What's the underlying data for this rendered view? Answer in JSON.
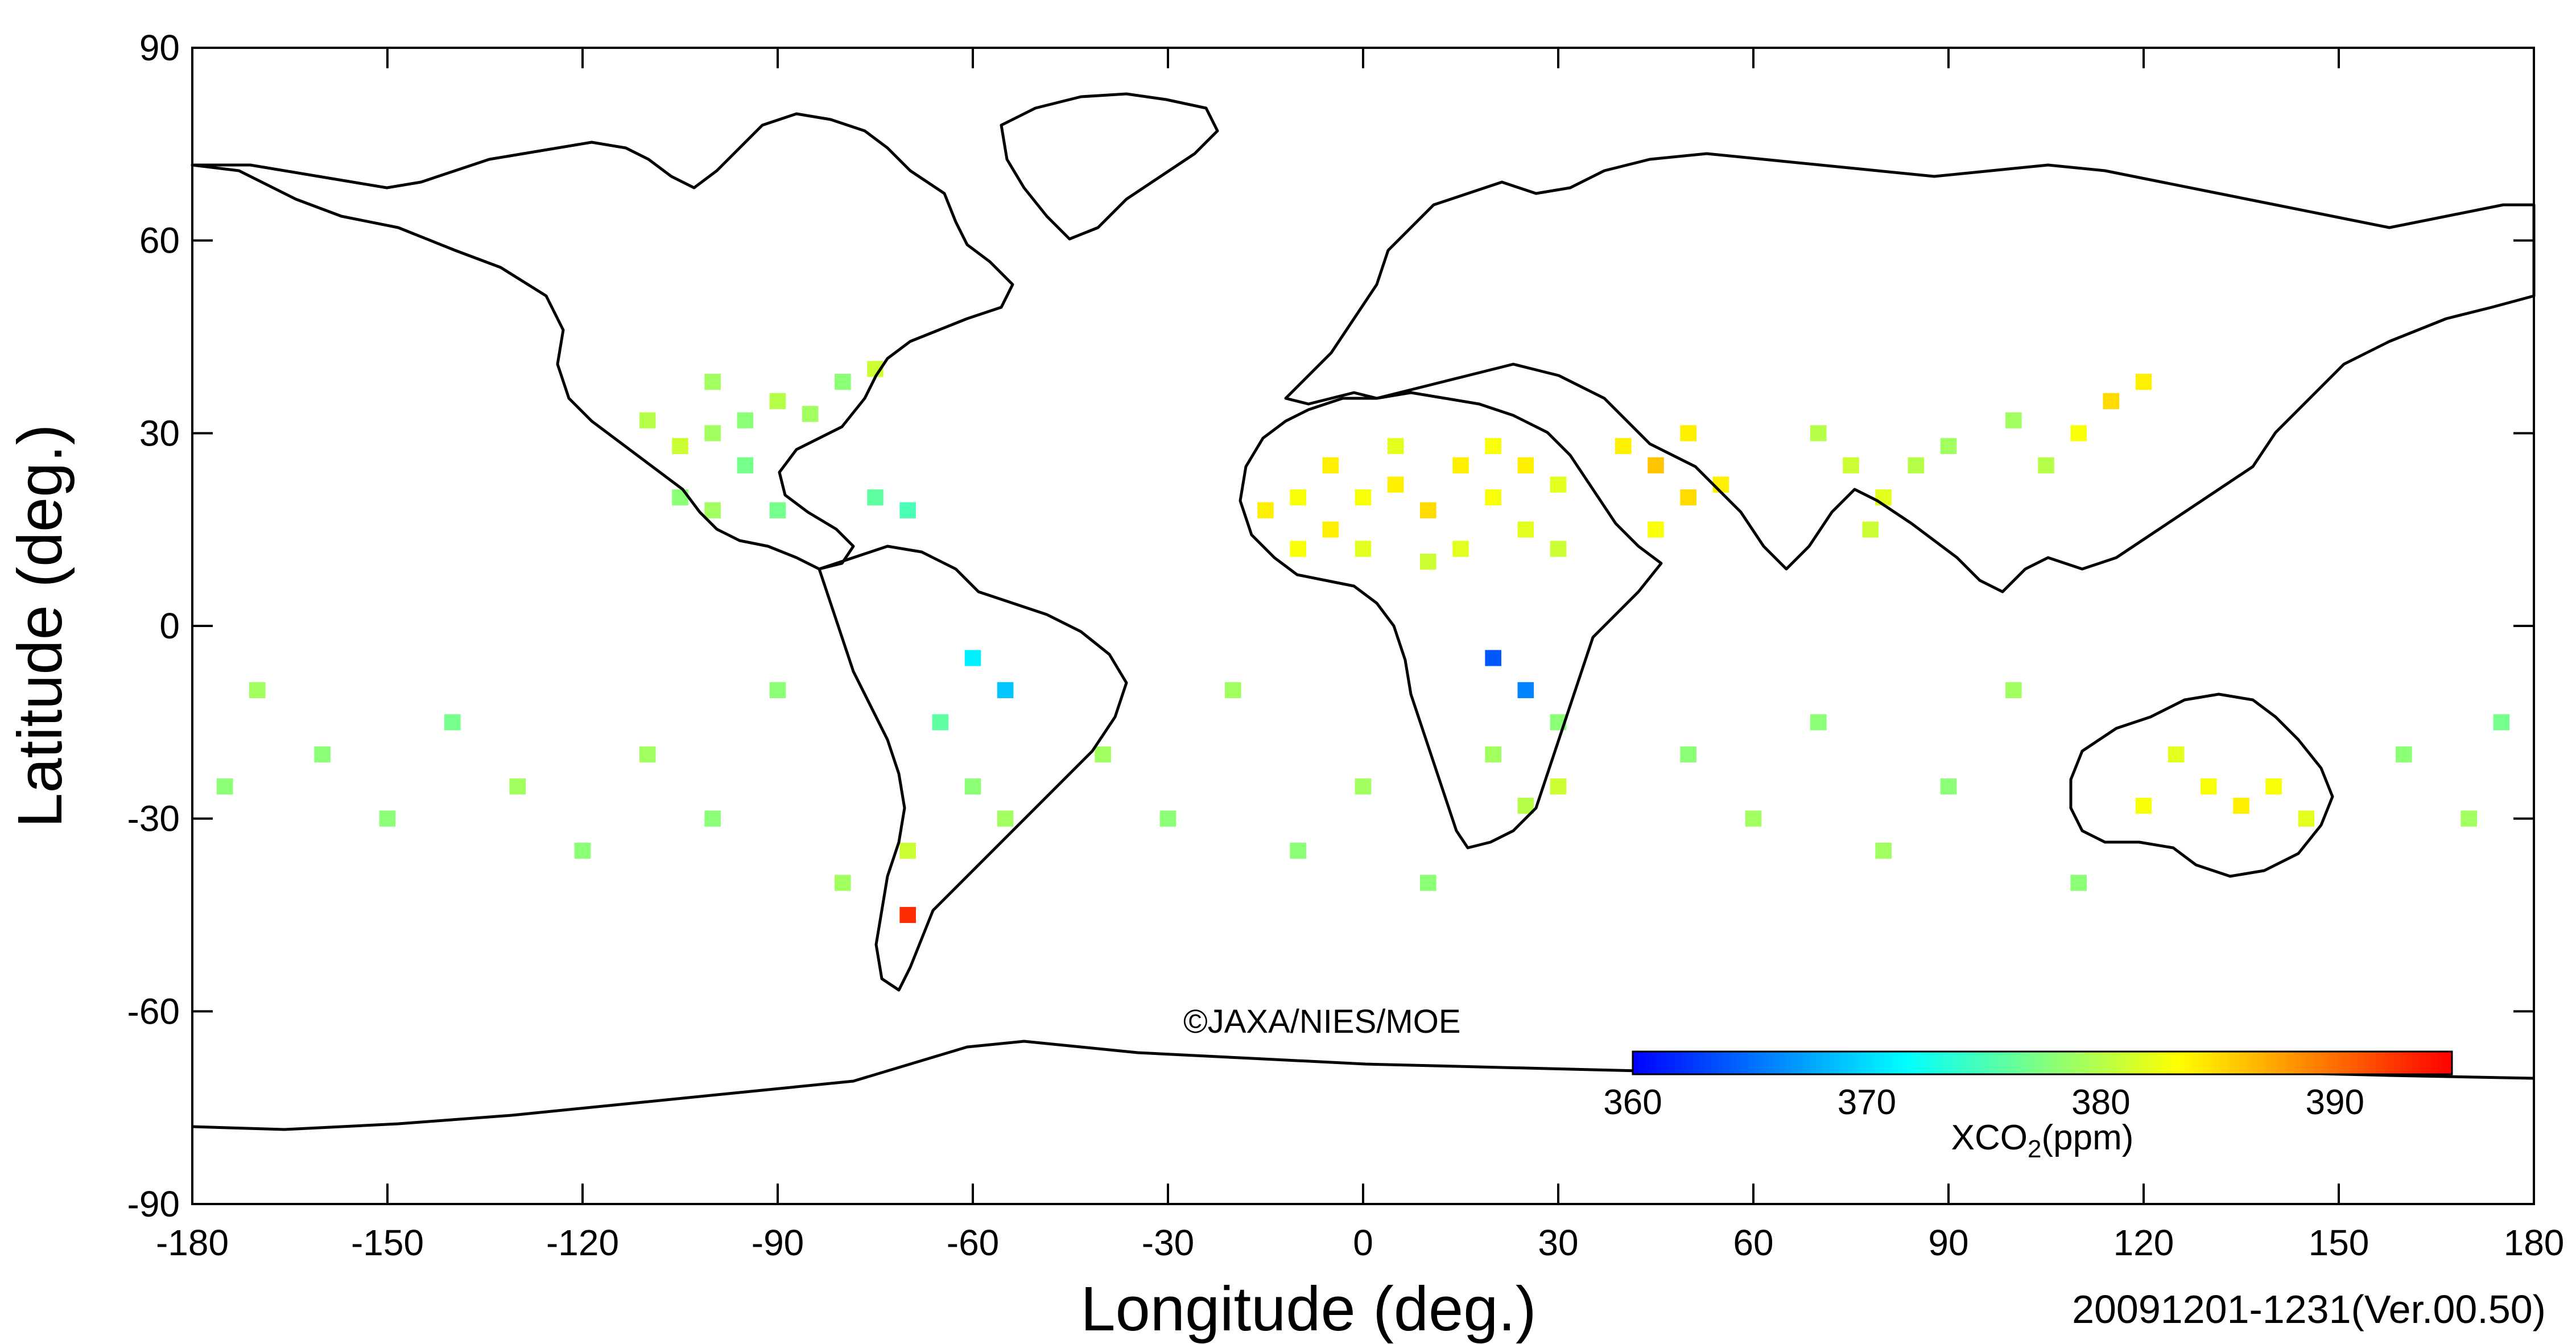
{
  "map": {
    "copyright": "©JAXA/NIES/MOE",
    "period_label": "20091201-1231(Ver.00.50)",
    "x_axis": {
      "label": "Longitude (deg.)",
      "range": [
        -180,
        180
      ],
      "ticks": [
        -180,
        -150,
        -120,
        -90,
        -60,
        -30,
        0,
        30,
        60,
        90,
        120,
        150,
        180
      ],
      "tick_labels": [
        "-180",
        "-150",
        "-120",
        "-90",
        "-60",
        "-30",
        "0",
        "30",
        "60",
        "90",
        "120",
        "150",
        "180"
      ]
    },
    "y_axis": {
      "label": "Latitude (deg.)",
      "range": [
        -90,
        90
      ],
      "ticks": [
        -90,
        -60,
        -30,
        0,
        30,
        60,
        90
      ],
      "tick_labels": [
        "-90",
        "-60",
        "-30",
        "0",
        "30",
        "60",
        "90"
      ]
    },
    "colorbar": {
      "label_prefix": "XCO",
      "label_subscript": "2",
      "label_suffix": "(ppm)",
      "range": [
        360,
        395
      ],
      "ticks": [
        360,
        370,
        380,
        390
      ],
      "tick_labels": [
        "360",
        "370",
        "380",
        "390"
      ],
      "colors": [
        "#0000ff",
        "#0080ff",
        "#00ffff",
        "#80ff80",
        "#ffff00",
        "#ff8000",
        "#ff0000"
      ]
    }
  },
  "chart_data": {
    "type": "heatmap",
    "description_units": "cells: [longitude, latitude, XCO2 ppm]",
    "cell_size_deg": 2.5,
    "cells": [
      [
        -100,
        30,
        379
      ],
      [
        -95,
        32,
        378
      ],
      [
        -90,
        35,
        380
      ],
      [
        -85,
        33,
        379
      ],
      [
        -105,
        28,
        381
      ],
      [
        -110,
        32,
        380
      ],
      [
        -80,
        38,
        378
      ],
      [
        -75,
        40,
        381
      ],
      [
        -100,
        38,
        379
      ],
      [
        -95,
        25,
        377
      ],
      [
        -105,
        20,
        378
      ],
      [
        -100,
        18,
        379
      ],
      [
        -90,
        18,
        377
      ],
      [
        -75,
        20,
        376
      ],
      [
        -70,
        18,
        375
      ],
      [
        0,
        20,
        383
      ],
      [
        5,
        22,
        384
      ],
      [
        10,
        18,
        385
      ],
      [
        15,
        25,
        384
      ],
      [
        20,
        20,
        383
      ],
      [
        25,
        15,
        382
      ],
      [
        -5,
        15,
        384
      ],
      [
        -10,
        20,
        383
      ],
      [
        -15,
        18,
        384
      ],
      [
        30,
        22,
        382
      ],
      [
        10,
        10,
        381
      ],
      [
        5,
        28,
        382
      ],
      [
        -5,
        25,
        384
      ],
      [
        20,
        28,
        383
      ],
      [
        15,
        12,
        382
      ],
      [
        30,
        12,
        381
      ],
      [
        0,
        12,
        382
      ],
      [
        -10,
        12,
        383
      ],
      [
        25,
        25,
        384
      ],
      [
        45,
        25,
        386
      ],
      [
        50,
        20,
        385
      ],
      [
        40,
        28,
        384
      ],
      [
        55,
        22,
        384
      ],
      [
        45,
        15,
        383
      ],
      [
        50,
        30,
        384
      ],
      [
        75,
        25,
        381
      ],
      [
        80,
        20,
        382
      ],
      [
        85,
        25,
        380
      ],
      [
        78,
        15,
        381
      ],
      [
        90,
        28,
        379
      ],
      [
        70,
        30,
        380
      ],
      [
        110,
        30,
        383
      ],
      [
        115,
        35,
        385
      ],
      [
        105,
        25,
        380
      ],
      [
        120,
        38,
        384
      ],
      [
        100,
        32,
        379
      ],
      [
        130,
        -25,
        383
      ],
      [
        135,
        -28,
        384
      ],
      [
        140,
        -25,
        383
      ],
      [
        125,
        -20,
        382
      ],
      [
        145,
        -30,
        382
      ],
      [
        120,
        -28,
        383
      ],
      [
        -60,
        -5,
        371
      ],
      [
        -55,
        -10,
        369
      ],
      [
        -65,
        -15,
        376
      ],
      [
        -60,
        -25,
        378
      ],
      [
        -55,
        -30,
        379
      ],
      [
        -70,
        -35,
        381
      ],
      [
        -70,
        -45,
        393
      ],
      [
        20,
        -5,
        364
      ],
      [
        25,
        -10,
        366
      ],
      [
        30,
        -15,
        378
      ],
      [
        20,
        -20,
        379
      ],
      [
        25,
        -28,
        380
      ],
      [
        30,
        -25,
        381
      ],
      [
        -170,
        -10,
        379
      ],
      [
        -160,
        -20,
        378
      ],
      [
        -150,
        -30,
        378
      ],
      [
        -140,
        -15,
        377
      ],
      [
        -130,
        -25,
        379
      ],
      [
        -120,
        -35,
        378
      ],
      [
        -110,
        -20,
        379
      ],
      [
        -100,
        -30,
        378
      ],
      [
        -90,
        -10,
        378
      ],
      [
        -80,
        -40,
        379
      ],
      [
        -40,
        -20,
        379
      ],
      [
        -30,
        -30,
        378
      ],
      [
        -20,
        -10,
        379
      ],
      [
        -10,
        -35,
        378
      ],
      [
        0,
        -25,
        379
      ],
      [
        10,
        -40,
        378
      ],
      [
        50,
        -20,
        378
      ],
      [
        60,
        -30,
        379
      ],
      [
        70,
        -15,
        378
      ],
      [
        80,
        -35,
        379
      ],
      [
        90,
        -25,
        378
      ],
      [
        100,
        -10,
        379
      ],
      [
        110,
        -40,
        378
      ],
      [
        160,
        -20,
        378
      ],
      [
        170,
        -30,
        379
      ],
      [
        175,
        -15,
        377
      ],
      [
        -175,
        -25,
        378
      ]
    ]
  }
}
